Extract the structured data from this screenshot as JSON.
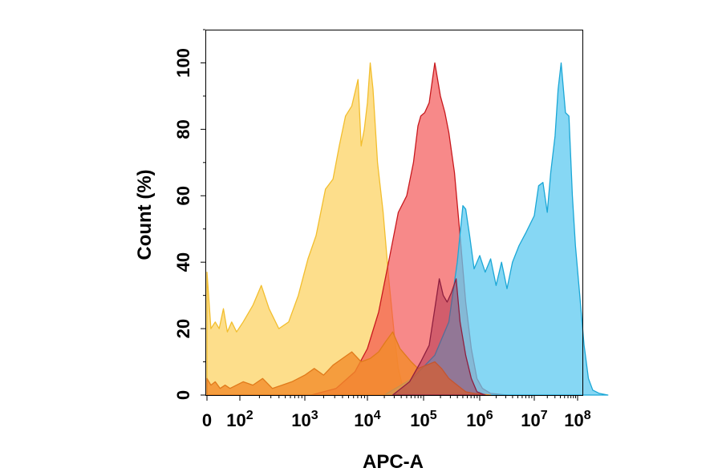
{
  "chart_data": {
    "type": "area",
    "xlabel": "APC-A",
    "ylabel": "Count  (%)",
    "xscale": "biexponential-log",
    "ylim": [
      0,
      110
    ],
    "grid": false,
    "x_ticks": [
      {
        "value": 0,
        "base": "0",
        "exp": ""
      },
      {
        "value": 100,
        "base": "10",
        "exp": "2"
      },
      {
        "value": 1000,
        "base": "10",
        "exp": "3"
      },
      {
        "value": 10000,
        "base": "10",
        "exp": "4"
      },
      {
        "value": 100000,
        "base": "10",
        "exp": "5"
      },
      {
        "value": 1000000,
        "base": "10",
        "exp": "6"
      },
      {
        "value": 10000000,
        "base": "10",
        "exp": "7"
      },
      {
        "value": 100000000,
        "base": "10",
        "exp": "8"
      }
    ],
    "y_ticks": [
      0,
      20,
      40,
      60,
      80,
      100
    ],
    "series": [
      {
        "fill": "#FDD877",
        "stroke": "#F2BE2E",
        "opacity": 0.85,
        "points": [
          [
            0,
            37
          ],
          [
            0.12,
            20
          ],
          [
            0.25,
            22
          ],
          [
            0.37,
            20
          ],
          [
            0.5,
            26
          ],
          [
            0.62,
            19
          ],
          [
            0.75,
            22
          ],
          [
            0.9,
            19
          ],
          [
            1.05,
            22
          ],
          [
            1.2,
            27
          ],
          [
            1.33,
            33
          ],
          [
            1.45,
            26
          ],
          [
            1.6,
            20
          ],
          [
            1.75,
            22
          ],
          [
            1.9,
            30
          ],
          [
            2.05,
            41
          ],
          [
            2.18,
            48
          ],
          [
            2.33,
            62
          ],
          [
            2.45,
            65
          ],
          [
            2.55,
            75
          ],
          [
            2.65,
            84
          ],
          [
            2.75,
            87
          ],
          [
            2.85,
            95
          ],
          [
            2.9,
            75
          ],
          [
            2.95,
            80
          ],
          [
            3.0,
            88
          ],
          [
            3.05,
            100
          ],
          [
            3.1,
            92
          ],
          [
            3.18,
            70
          ],
          [
            3.28,
            55
          ],
          [
            3.38,
            35
          ],
          [
            3.48,
            18
          ],
          [
            3.55,
            8
          ],
          [
            3.62,
            3
          ],
          [
            3.75,
            0.5
          ]
        ]
      },
      {
        "fill": "#F24A4A",
        "stroke": "#C8191E",
        "opacity": 0.65,
        "points": [
          [
            0.7,
            0
          ],
          [
            1.5,
            0
          ],
          [
            2.1,
            0
          ],
          [
            2.5,
            2
          ],
          [
            2.8,
            7
          ],
          [
            3.0,
            14
          ],
          [
            3.2,
            25
          ],
          [
            3.4,
            42
          ],
          [
            3.55,
            55
          ],
          [
            3.7,
            60
          ],
          [
            3.82,
            70
          ],
          [
            3.9,
            81
          ],
          [
            3.95,
            84
          ],
          [
            4.02,
            85
          ],
          [
            4.1,
            88
          ],
          [
            4.2,
            100
          ],
          [
            4.3,
            90
          ],
          [
            4.38,
            85
          ],
          [
            4.45,
            79
          ],
          [
            4.55,
            67
          ],
          [
            4.65,
            48
          ],
          [
            4.75,
            28
          ],
          [
            4.85,
            14
          ],
          [
            4.95,
            5
          ],
          [
            5.05,
            2
          ],
          [
            5.2,
            0.5
          ],
          [
            5.5,
            0
          ]
        ]
      },
      {
        "fill": "#5DCAF0",
        "stroke": "#1BA7D6",
        "opacity": 0.75,
        "points": [
          [
            3.3,
            0
          ],
          [
            3.8,
            5
          ],
          [
            4.2,
            12
          ],
          [
            4.45,
            22
          ],
          [
            4.6,
            40
          ],
          [
            4.7,
            57
          ],
          [
            4.75,
            56
          ],
          [
            4.82,
            48
          ],
          [
            4.9,
            38
          ],
          [
            5.0,
            42
          ],
          [
            5.1,
            37
          ],
          [
            5.2,
            41
          ],
          [
            5.3,
            33
          ],
          [
            5.4,
            40
          ],
          [
            5.5,
            32
          ],
          [
            5.6,
            40
          ],
          [
            5.72,
            45
          ],
          [
            5.85,
            49
          ],
          [
            6.0,
            54
          ],
          [
            6.1,
            63
          ],
          [
            6.2,
            64
          ],
          [
            6.3,
            55
          ],
          [
            6.38,
            67
          ],
          [
            6.48,
            78
          ],
          [
            6.55,
            92
          ],
          [
            6.62,
            100
          ],
          [
            6.72,
            85
          ],
          [
            6.8,
            84
          ],
          [
            6.88,
            60
          ],
          [
            6.95,
            45
          ],
          [
            7.05,
            30
          ],
          [
            7.15,
            15
          ],
          [
            7.25,
            5
          ],
          [
            7.35,
            1.5
          ],
          [
            7.5,
            0.5
          ],
          [
            7.7,
            0
          ]
        ]
      },
      {
        "fill": "#F28C2A",
        "stroke": "#E07A1B",
        "opacity": 0.8,
        "points": [
          [
            0,
            5
          ],
          [
            0.12,
            3
          ],
          [
            0.25,
            4
          ],
          [
            0.4,
            2
          ],
          [
            0.55,
            3
          ],
          [
            0.7,
            2
          ],
          [
            0.9,
            3
          ],
          [
            1.05,
            4
          ],
          [
            1.2,
            3
          ],
          [
            1.35,
            5
          ],
          [
            1.5,
            2
          ],
          [
            1.65,
            3
          ],
          [
            1.8,
            4
          ],
          [
            2.0,
            6
          ],
          [
            2.15,
            8
          ],
          [
            2.3,
            6
          ],
          [
            2.45,
            9
          ],
          [
            2.6,
            11
          ],
          [
            2.75,
            13
          ],
          [
            2.9,
            10
          ],
          [
            3.05,
            11
          ],
          [
            3.2,
            13
          ],
          [
            3.32,
            16
          ],
          [
            3.45,
            19
          ],
          [
            3.58,
            14
          ],
          [
            3.68,
            12
          ],
          [
            3.78,
            10
          ],
          [
            3.9,
            8
          ],
          [
            4.05,
            9
          ],
          [
            4.2,
            10
          ],
          [
            4.32,
            8
          ],
          [
            4.45,
            5
          ],
          [
            4.6,
            3
          ],
          [
            4.75,
            1
          ],
          [
            4.9,
            0.5
          ],
          [
            5.2,
            0
          ]
        ]
      },
      {
        "fill": "#A3294A",
        "stroke": "#8E1F3F",
        "opacity": 0.45,
        "points": [
          [
            3.45,
            0
          ],
          [
            3.75,
            4
          ],
          [
            3.95,
            10
          ],
          [
            4.1,
            15
          ],
          [
            4.2,
            26
          ],
          [
            4.28,
            35
          ],
          [
            4.35,
            30
          ],
          [
            4.42,
            28
          ],
          [
            4.5,
            31
          ],
          [
            4.58,
            35
          ],
          [
            4.65,
            22
          ],
          [
            4.75,
            12
          ],
          [
            4.85,
            5
          ],
          [
            4.95,
            1
          ],
          [
            5.1,
            0
          ]
        ]
      }
    ]
  }
}
